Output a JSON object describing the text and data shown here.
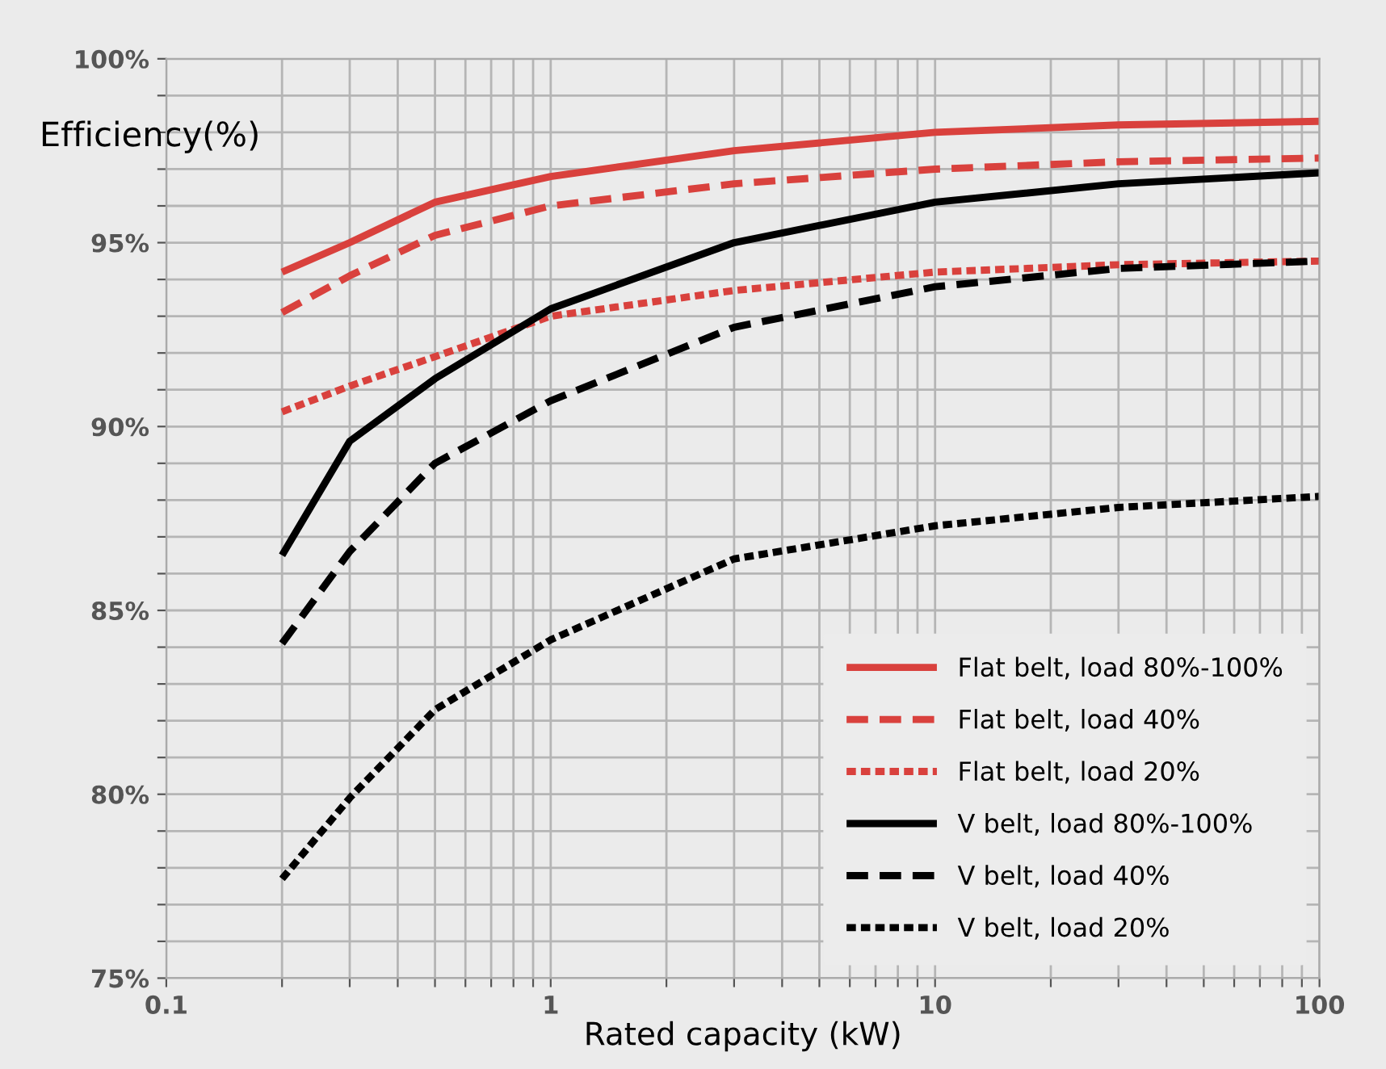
{
  "chart_data": {
    "type": "line",
    "xlabel": "Rated capacity (kW)",
    "ylabel": "Efficiency(%)",
    "log": "x",
    "grid": true,
    "legend": "bottom right",
    "xlim": [
      0.1,
      100
    ],
    "ylim": [
      75,
      100
    ],
    "xticks": [
      0.1,
      {
        "value": 0.2,
        "label": null
      },
      {
        "value": 0.3,
        "label": null
      },
      {
        "value": 0.4,
        "label": null
      },
      {
        "value": 0.5,
        "label": null
      },
      {
        "value": 0.6,
        "label": null
      },
      {
        "value": 0.7,
        "label": null
      },
      {
        "value": 0.8,
        "label": null
      },
      {
        "value": 0.9,
        "label": null
      },
      1,
      {
        "value": 2,
        "label": null
      },
      {
        "value": 3,
        "label": null
      },
      {
        "value": 4,
        "label": null
      },
      {
        "value": 5,
        "label": null
      },
      {
        "value": 6,
        "label": null
      },
      {
        "value": 7,
        "label": null
      },
      {
        "value": 8,
        "label": null
      },
      {
        "value": 9,
        "label": null
      },
      10,
      {
        "value": 20,
        "label": null
      },
      {
        "value": 30,
        "label": null
      },
      {
        "value": 40,
        "label": null
      },
      {
        "value": 50,
        "label": null
      },
      {
        "value": 60,
        "label": null
      },
      {
        "value": 70,
        "label": null
      },
      {
        "value": 80,
        "label": null
      },
      {
        "value": 90,
        "label": null
      },
      100
    ],
    "yticks": [
      {
        "value": 75,
        "label": "75%"
      },
      {
        "value": 76,
        "label": null
      },
      {
        "value": 77,
        "label": null
      },
      {
        "value": 78,
        "label": null
      },
      {
        "value": 79,
        "label": null
      },
      {
        "value": 80,
        "label": "80%"
      },
      {
        "value": 81,
        "label": null
      },
      {
        "value": 82,
        "label": null
      },
      {
        "value": 83,
        "label": null
      },
      {
        "value": 84,
        "label": null
      },
      {
        "value": 85,
        "label": "85%"
      },
      {
        "value": 86,
        "label": null
      },
      {
        "value": 87,
        "label": null
      },
      {
        "value": 88,
        "label": null
      },
      {
        "value": 89,
        "label": null
      },
      {
        "value": 90,
        "label": "90%"
      },
      {
        "value": 91,
        "label": null
      },
      {
        "value": 92,
        "label": null
      },
      {
        "value": 93,
        "label": null
      },
      {
        "value": 94,
        "label": null
      },
      {
        "value": 95,
        "label": "95%"
      },
      {
        "value": 96,
        "label": null
      },
      {
        "value": 97,
        "label": null
      },
      {
        "value": 98,
        "label": null
      },
      {
        "value": 99,
        "label": null
      },
      {
        "value": 100,
        "label": "100%"
      }
    ],
    "x": [
      0.2,
      0.3,
      0.5,
      1,
      3,
      10,
      30,
      100
    ],
    "marker": "none",
    "series": [
      {
        "name": "Flat belt, load 80%-100%",
        "color": "#d9413d",
        "line_style": "solid",
        "values": [
          94.2,
          95.0,
          96.1,
          96.8,
          97.5,
          98.0,
          98.2,
          98.3
        ]
      },
      {
        "name": "Flat belt, load 40%",
        "color": "#d9413d",
        "line_style": "dashed",
        "values": [
          93.1,
          94.1,
          95.2,
          96.0,
          96.6,
          97.0,
          97.2,
          97.3
        ]
      },
      {
        "name": "Flat belt, load 20%",
        "color": "#d9413d",
        "line_style": "dotted",
        "values": [
          90.4,
          91.1,
          91.9,
          93.0,
          93.7,
          94.2,
          94.4,
          94.5
        ]
      },
      {
        "name": "V belt, load 80%-100%",
        "color": "#000000",
        "line_style": "solid",
        "values": [
          86.5,
          89.6,
          91.3,
          93.2,
          95.0,
          96.1,
          96.6,
          96.9
        ]
      },
      {
        "name": "V belt, load 40%",
        "color": "#000000",
        "line_style": "dashed",
        "values": [
          84.1,
          86.6,
          89.0,
          90.7,
          92.7,
          93.8,
          94.3,
          94.5
        ]
      },
      {
        "name": "V belt, load 20%",
        "color": "#000000",
        "line_style": "dotted",
        "values": [
          77.7,
          79.9,
          82.3,
          84.2,
          86.4,
          87.3,
          87.8,
          88.1
        ]
      }
    ]
  }
}
